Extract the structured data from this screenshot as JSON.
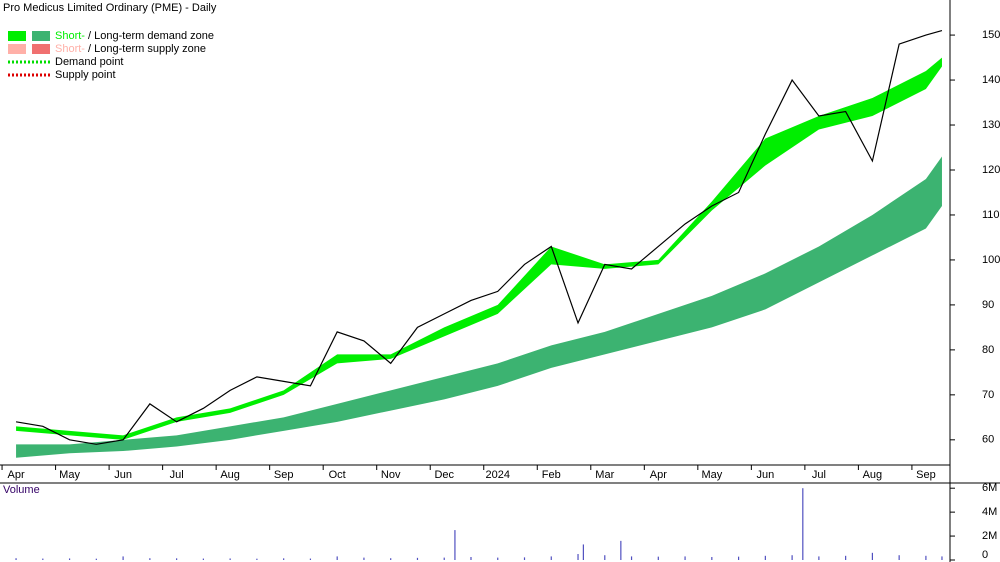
{
  "chart_data": [
    {
      "type": "line",
      "title": "Pro Medicus Limited Ordinary (PME) - Daily",
      "legend": [
        {
          "parts": [
            "Short-",
            " / ",
            "Long-term demand zone"
          ],
          "colors": [
            "#00ee00",
            "#3cb371"
          ]
        },
        {
          "parts": [
            "Short-",
            " / ",
            "Long-term supply zone"
          ],
          "colors": [
            "#ffb0a8",
            "#f07070"
          ]
        },
        {
          "parts": [
            "Demand point"
          ],
          "colors": [
            "#00dd00"
          ]
        },
        {
          "parts": [
            "Supply point"
          ],
          "colors": [
            "#dd0000"
          ]
        }
      ],
      "x": [
        0,
        0.5,
        1,
        1.5,
        2,
        2.5,
        3,
        3.5,
        4,
        4.5,
        5,
        5.5,
        6,
        6.5,
        7,
        7.5,
        8,
        8.5,
        9,
        9.5,
        10,
        10.5,
        11,
        11.5,
        12,
        12.5,
        13,
        13.5,
        14,
        14.5,
        15,
        15.5,
        16,
        16.5,
        17,
        17.3
      ],
      "series": [
        {
          "color": "#000000",
          "values": [
            64,
            63,
            60,
            59,
            60,
            68,
            64,
            67,
            71,
            74,
            73,
            72,
            84,
            82,
            77,
            85,
            88,
            91,
            93,
            99,
            103,
            86,
            99,
            98,
            103,
            108,
            112,
            115,
            128,
            140,
            132,
            133,
            122,
            148,
            150,
            151
          ]
        }
      ],
      "zones": {
        "x": [
          0,
          1,
          2,
          3,
          4,
          5,
          6,
          7,
          8,
          9,
          10,
          11,
          12,
          13,
          14,
          15,
          16,
          17,
          17.3
        ],
        "long_upper": [
          59,
          59,
          60,
          61,
          63,
          65,
          68,
          71,
          74,
          77,
          81,
          84,
          88,
          92,
          97,
          103,
          110,
          118,
          123
        ],
        "long_lower": [
          56,
          57,
          57.5,
          58.5,
          60,
          62,
          64,
          66.5,
          69,
          72,
          76,
          79,
          82,
          85,
          89,
          95,
          101,
          107,
          112
        ],
        "short_upper": [
          63,
          62,
          61,
          65,
          67,
          71,
          79,
          79,
          85,
          90,
          103,
          99,
          100,
          113,
          127,
          132,
          136,
          142,
          145
        ],
        "short_lower": [
          62,
          61,
          60,
          64,
          66,
          70,
          77,
          78,
          83,
          88,
          99,
          98,
          99,
          111,
          121,
          129,
          132,
          138,
          143
        ],
        "long_color": "#3cb371",
        "short_color": "#00ee00"
      },
      "xlim": [
        -0.3,
        17.45
      ],
      "xticks": [
        {
          "value": 0,
          "label": "Apr"
        },
        {
          "value": 1,
          "label": "May"
        },
        {
          "value": 2,
          "label": "Jun"
        },
        {
          "value": 3,
          "label": "Jul"
        },
        {
          "value": 4,
          "label": "Aug"
        },
        {
          "value": 5,
          "label": "Sep"
        },
        {
          "value": 6,
          "label": "Oct"
        },
        {
          "value": 7,
          "label": "Nov"
        },
        {
          "value": 8,
          "label": "Dec"
        },
        {
          "value": 9,
          "label": "2024"
        },
        {
          "value": 10,
          "label": "Feb"
        },
        {
          "value": 11,
          "label": "Mar"
        },
        {
          "value": 12,
          "label": "Apr"
        },
        {
          "value": 13,
          "label": "May"
        },
        {
          "value": 14,
          "label": "Jun"
        },
        {
          "value": 15,
          "label": "Jul"
        },
        {
          "value": 16,
          "label": "Aug"
        },
        {
          "value": 17,
          "label": "Sep"
        }
      ],
      "ylim": [
        54.4,
        157.8
      ],
      "yticks": [
        60,
        70,
        80,
        90,
        100,
        110,
        120,
        130,
        140,
        150
      ]
    },
    {
      "type": "bar",
      "title": "Volume",
      "color": "#5050c0",
      "x": [
        0,
        0.5,
        1,
        1.5,
        2,
        2.5,
        3,
        3.5,
        4,
        4.5,
        5,
        5.5,
        6,
        6.5,
        7,
        7.5,
        8,
        8.2,
        8.5,
        9,
        9.5,
        10,
        10.5,
        10.6,
        11,
        11.3,
        11.5,
        12,
        12.5,
        13,
        13.5,
        14,
        14.5,
        14.7,
        15,
        15.5,
        16,
        16.5,
        17,
        17.3
      ],
      "values": [
        150000,
        120000,
        130000,
        110000,
        300000,
        150000,
        140000,
        120000,
        130000,
        110000,
        140000,
        120000,
        300000,
        200000,
        150000,
        180000,
        200000,
        2500000,
        250000,
        200000,
        220000,
        300000,
        500000,
        1300000,
        400000,
        1600000,
        300000,
        280000,
        300000,
        250000,
        280000,
        350000,
        400000,
        6000000,
        300000,
        350000,
        600000,
        400000,
        350000,
        300000
      ],
      "xlim": [
        -0.3,
        17.45
      ],
      "ylim": [
        0,
        6100000
      ],
      "yticks": [
        0,
        {
          "value": 2000000,
          "label": "2M"
        },
        {
          "value": 4000000,
          "label": "4M"
        },
        {
          "value": 6000000,
          "label": "6M"
        }
      ]
    }
  ]
}
